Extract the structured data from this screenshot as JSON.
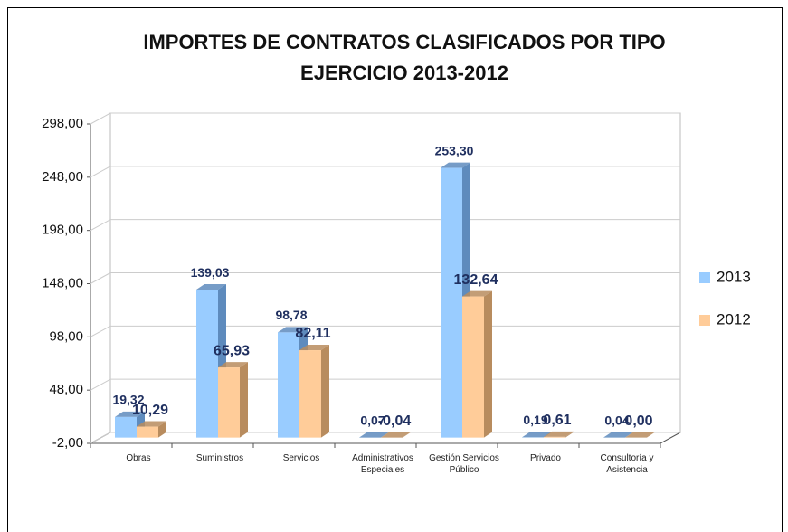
{
  "chart_data": {
    "type": "bar3d",
    "title": "IMPORTES DE CONTRATOS CLASIFICADOS POR TIPO",
    "subtitle": "EJERCICIO 2013-2012",
    "categories": [
      "Obras",
      "Suministros",
      "Servicios",
      "Administrativos Especiales",
      "Gestión Servicios Público",
      "Privado",
      "Consultoría y Asistencia"
    ],
    "series": [
      {
        "name": "2013",
        "color": "#99ccff",
        "side": "#5e8bbd",
        "values": [
          19.32,
          139.03,
          98.78,
          0.07,
          253.3,
          0.19,
          0.04
        ],
        "value_labels": [
          "19,32",
          "139,03",
          "98,78",
          "0,07",
          "253,30",
          "0,19",
          "0,04"
        ]
      },
      {
        "name": "2012",
        "color": "#ffcc99",
        "side": "#b88c5e",
        "values": [
          10.29,
          65.93,
          82.11,
          -0.04,
          132.64,
          0.61,
          0.0
        ],
        "value_labels": [
          "10,29",
          "65,93",
          "82,11",
          "-0,04",
          "132,64",
          "0,61",
          "0,00"
        ]
      }
    ],
    "ylim": [
      -2,
      298
    ],
    "yticks": [
      {
        "value": -2,
        "label": "-2,00"
      },
      {
        "value": 48,
        "label": "48,00"
      },
      {
        "value": 98,
        "label": "98,00"
      },
      {
        "value": 148,
        "label": "148,00"
      },
      {
        "value": 198,
        "label": "198,00"
      },
      {
        "value": 248,
        "label": "248,00"
      },
      {
        "value": 298,
        "label": "298,00"
      }
    ],
    "grid": true,
    "legend": "right"
  }
}
